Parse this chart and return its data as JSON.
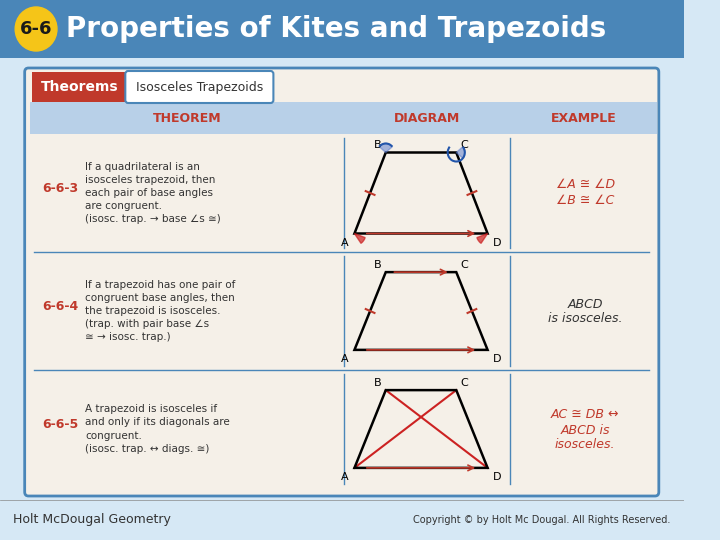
{
  "title_badge": "6-6",
  "title_text": "Properties of Kites and Trapezoids",
  "header_bg": "#4a86b8",
  "badge_bg": "#f5c518",
  "badge_text_color": "#1a1a1a",
  "title_text_color": "#ffffff",
  "slide_bg": "#d6e8f5",
  "table_bg": "#f5f0e8",
  "table_border": "#4a86b8",
  "theorems_label_bg": "#c0392b",
  "theorems_label_color": "#ffffff",
  "tab_label_bg": "#ffffff",
  "tab_label_color": "#333333",
  "tab_label_border": "#4a86b8",
  "col_header_bg": "#b8d0e8",
  "col_header_color": "#c0392b",
  "theorem_num_color": "#c0392b",
  "theorem_text_color": "#333333",
  "example_color_663": "#c0392b",
  "example_color_664": "#333333",
  "example_color_665": "#c0392b",
  "row_divider_color": "#4a86b8",
  "footer_bg": "#d6e8f5",
  "footer_left": "Holt McDougal Geometry",
  "footer_right": "Copyright © by Holt Mc Dougal. All Rights Reserved.",
  "footer_color": "#333333",
  "rows": [
    {
      "num": "6-6-3",
      "theorem": "If a quadrilateral is an\nisosceles trapezoid, then\neach pair of base angles\nare congruent.\n(isosc. trap. → base ∠s ≅)",
      "example_lines": [
        "∠A ≅ ∠D",
        "∠B ≅ ∠C"
      ],
      "example_italic": true,
      "example_color": "#c0392b"
    },
    {
      "num": "6-6-4",
      "theorem": "If a trapezoid has one pair of\ncongruent base angles, then\nthe trapezoid is isosceles.\n(trap. with pair base ∠s\n≅ → isosc. trap.)",
      "example_lines": [
        "ABCD",
        "is isosceles."
      ],
      "example_italic": true,
      "example_color": "#333333"
    },
    {
      "num": "6-6-5",
      "theorem": "A trapezoid is isosceles if\nand only if its diagonals are\ncongruent.\n(isosc. trap. ↔ diags. ≅)",
      "example_lines": [
        "AC ≅ DB ↔",
        "ABCD is",
        "isosceles."
      ],
      "example_italic": true,
      "example_color": "#c0392b"
    }
  ]
}
